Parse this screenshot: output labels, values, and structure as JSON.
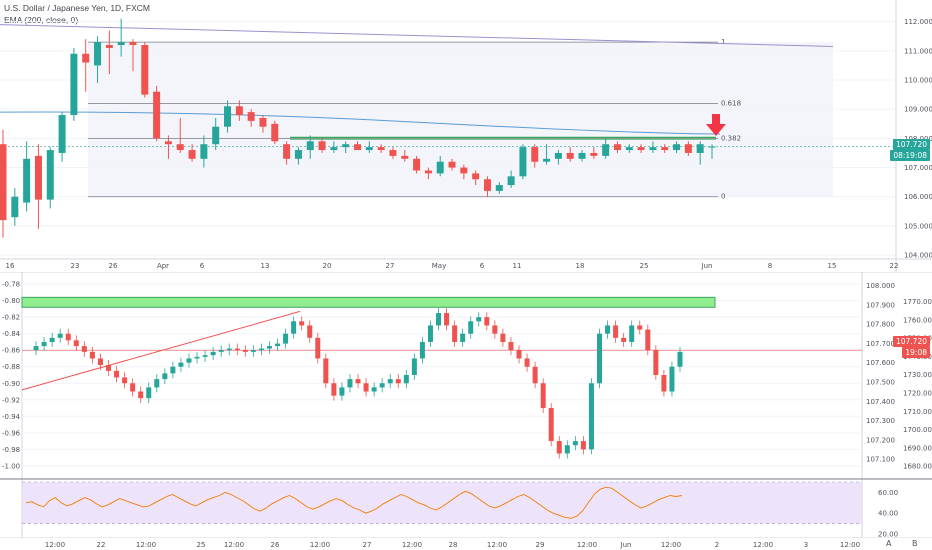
{
  "header": {
    "title": "U.S. Dollar / Japanese Yen, 1D, FXCM",
    "indicator": "EMA (200, close, 0)"
  },
  "colors": {
    "up": "#26a69a",
    "down": "#ef5350",
    "fib": "#787b86",
    "ema": "#5b9bd5",
    "trend": "#9c8fcf",
    "support": "#3ba55c",
    "arrow": "#f23645",
    "zone": "#90ee90",
    "rsi": "#f57c00",
    "rsi_band": "#e6d9fb"
  },
  "top": {
    "price_axis": [
      "112.000",
      "111.000",
      "110.000",
      "109.000",
      "108.000",
      "107.000",
      "106.000",
      "105.000",
      "104.000"
    ],
    "time_axis": [
      "16",
      "23",
      "26",
      "Apr",
      "6",
      "13",
      "20",
      "27",
      "May",
      "6",
      "11",
      "18",
      "25",
      "Jun",
      "8",
      "15",
      "22"
    ],
    "fib_labels": [
      "1",
      "0.618",
      "0.382",
      "0"
    ],
    "last_price": "107.720",
    "countdown": "08:19:08"
  },
  "bottom": {
    "left_axis": [
      "-0.78",
      "-0.80",
      "-0.82",
      "-0.84",
      "-0.86",
      "-0.88",
      "-0.90",
      "-0.92",
      "-0.94",
      "-0.96",
      "-0.98",
      "-1.00"
    ],
    "right_axis_a": [
      "108.000",
      "107.900",
      "107.800",
      "107.700",
      "107.600",
      "107.500",
      "107.400",
      "107.300",
      "107.200",
      "107.100"
    ],
    "right_axis_b": [
      "1770.00",
      "1760.00",
      "1750.00",
      "1740.00",
      "1730.00",
      "1720.00",
      "1710.00",
      "1700.00",
      "1690.00",
      "1680.00"
    ],
    "last_price": "107.720",
    "countdown": "19:08",
    "rsi_axis": [
      "60.00",
      "40.00",
      "20.00"
    ],
    "time_axis": [
      "12:00",
      "22",
      "12:00",
      "25",
      "12:00",
      "26",
      "12:00",
      "27",
      "12:00",
      "28",
      "12:00",
      "29",
      "12:00",
      "Jun",
      "12:00",
      "2",
      "12:00",
      "3",
      "12:00"
    ],
    "corner_a": "A",
    "corner_b": "B"
  },
  "chart_data": [
    {
      "type": "candlestick",
      "title": "U.S. Dollar / Japanese Yen, 1D, FXCM",
      "ylim": [
        103.9,
        112.4
      ],
      "fib_levels": [
        {
          "label": "1",
          "value": 111.3
        },
        {
          "label": "0.618",
          "value": 109.2
        },
        {
          "label": "0.382",
          "value": 108.0
        },
        {
          "label": "0",
          "value": 106.0
        }
      ],
      "candles": [
        {
          "o": 107.8,
          "h": 108.3,
          "l": 104.6,
          "c": 105.2
        },
        {
          "o": 105.3,
          "h": 106.3,
          "l": 105.0,
          "c": 106.0
        },
        {
          "o": 105.8,
          "h": 107.9,
          "l": 105.5,
          "c": 107.3
        },
        {
          "o": 107.4,
          "h": 107.8,
          "l": 104.9,
          "c": 105.9
        },
        {
          "o": 105.9,
          "h": 107.7,
          "l": 105.6,
          "c": 107.6
        },
        {
          "o": 107.5,
          "h": 108.9,
          "l": 107.2,
          "c": 108.8
        },
        {
          "o": 108.8,
          "h": 111.1,
          "l": 108.6,
          "c": 110.9
        },
        {
          "o": 110.9,
          "h": 111.4,
          "l": 109.6,
          "c": 110.6
        },
        {
          "o": 110.5,
          "h": 111.5,
          "l": 109.9,
          "c": 111.3
        },
        {
          "o": 111.2,
          "h": 111.7,
          "l": 110.2,
          "c": 111.1
        },
        {
          "o": 111.2,
          "h": 112.1,
          "l": 110.8,
          "c": 111.3
        },
        {
          "o": 111.3,
          "h": 111.4,
          "l": 110.3,
          "c": 111.2
        },
        {
          "o": 111.2,
          "h": 111.3,
          "l": 109.4,
          "c": 109.5
        },
        {
          "o": 109.6,
          "h": 109.8,
          "l": 107.9,
          "c": 108.0
        },
        {
          "o": 107.9,
          "h": 108.1,
          "l": 107.3,
          "c": 107.8
        },
        {
          "o": 107.8,
          "h": 108.7,
          "l": 107.5,
          "c": 107.6
        },
        {
          "o": 107.6,
          "h": 107.8,
          "l": 107.2,
          "c": 107.3
        },
        {
          "o": 107.3,
          "h": 108.1,
          "l": 107.0,
          "c": 107.8
        },
        {
          "o": 107.8,
          "h": 108.7,
          "l": 107.6,
          "c": 108.4
        },
        {
          "o": 108.4,
          "h": 109.3,
          "l": 108.2,
          "c": 109.1
        },
        {
          "o": 109.1,
          "h": 109.3,
          "l": 108.6,
          "c": 108.8
        },
        {
          "o": 108.9,
          "h": 109.0,
          "l": 108.4,
          "c": 108.6
        },
        {
          "o": 108.7,
          "h": 108.8,
          "l": 108.2,
          "c": 108.4
        },
        {
          "o": 108.5,
          "h": 108.6,
          "l": 107.8,
          "c": 107.9
        },
        {
          "o": 107.8,
          "h": 107.9,
          "l": 107.1,
          "c": 107.3
        },
        {
          "o": 107.3,
          "h": 107.7,
          "l": 107.1,
          "c": 107.6
        },
        {
          "o": 107.6,
          "h": 108.1,
          "l": 107.3,
          "c": 107.9
        },
        {
          "o": 107.9,
          "h": 108.0,
          "l": 107.5,
          "c": 107.6
        },
        {
          "o": 107.6,
          "h": 107.9,
          "l": 107.5,
          "c": 107.7
        },
        {
          "o": 107.7,
          "h": 107.9,
          "l": 107.5,
          "c": 107.8
        },
        {
          "o": 107.8,
          "h": 107.9,
          "l": 107.6,
          "c": 107.6
        },
        {
          "o": 107.6,
          "h": 107.9,
          "l": 107.5,
          "c": 107.7
        },
        {
          "o": 107.7,
          "h": 107.8,
          "l": 107.5,
          "c": 107.6
        },
        {
          "o": 107.6,
          "h": 107.7,
          "l": 107.3,
          "c": 107.4
        },
        {
          "o": 107.4,
          "h": 107.6,
          "l": 107.2,
          "c": 107.3
        },
        {
          "o": 107.3,
          "h": 107.4,
          "l": 106.8,
          "c": 106.9
        },
        {
          "o": 106.9,
          "h": 107.0,
          "l": 106.6,
          "c": 106.8
        },
        {
          "o": 106.8,
          "h": 107.4,
          "l": 106.7,
          "c": 107.2
        },
        {
          "o": 107.2,
          "h": 107.3,
          "l": 106.9,
          "c": 107.0
        },
        {
          "o": 107.0,
          "h": 107.1,
          "l": 106.6,
          "c": 106.8
        },
        {
          "o": 106.8,
          "h": 106.9,
          "l": 106.4,
          "c": 106.6
        },
        {
          "o": 106.6,
          "h": 106.7,
          "l": 106.0,
          "c": 106.2
        },
        {
          "o": 106.2,
          "h": 106.5,
          "l": 106.1,
          "c": 106.4
        },
        {
          "o": 106.4,
          "h": 106.9,
          "l": 106.3,
          "c": 106.7
        },
        {
          "o": 106.7,
          "h": 107.8,
          "l": 106.6,
          "c": 107.7
        },
        {
          "o": 107.7,
          "h": 107.8,
          "l": 107.0,
          "c": 107.2
        },
        {
          "o": 107.2,
          "h": 107.8,
          "l": 107.1,
          "c": 107.3
        },
        {
          "o": 107.3,
          "h": 107.6,
          "l": 107.1,
          "c": 107.5
        },
        {
          "o": 107.5,
          "h": 107.7,
          "l": 107.2,
          "c": 107.3
        },
        {
          "o": 107.3,
          "h": 107.6,
          "l": 107.2,
          "c": 107.5
        },
        {
          "o": 107.5,
          "h": 107.7,
          "l": 107.3,
          "c": 107.4
        },
        {
          "o": 107.4,
          "h": 108.0,
          "l": 107.3,
          "c": 107.8
        },
        {
          "o": 107.8,
          "h": 107.9,
          "l": 107.5,
          "c": 107.6
        },
        {
          "o": 107.6,
          "h": 107.8,
          "l": 107.5,
          "c": 107.7
        },
        {
          "o": 107.7,
          "h": 107.8,
          "l": 107.5,
          "c": 107.6
        },
        {
          "o": 107.6,
          "h": 107.9,
          "l": 107.5,
          "c": 107.7
        },
        {
          "o": 107.7,
          "h": 107.8,
          "l": 107.5,
          "c": 107.6
        },
        {
          "o": 107.6,
          "h": 107.9,
          "l": 107.5,
          "c": 107.8
        },
        {
          "o": 107.8,
          "h": 107.9,
          "l": 107.4,
          "c": 107.5
        },
        {
          "o": 107.5,
          "h": 107.9,
          "l": 107.1,
          "c": 107.8
        },
        {
          "o": 107.7,
          "h": 107.8,
          "l": 107.3,
          "c": 107.72
        }
      ]
    },
    {
      "type": "line",
      "ylabel": "",
      "ylim": [
        -1.005,
        -0.775
      ],
      "zone": [
        -0.808,
        -0.796
      ],
      "trendline": [
        [
          0,
          -0.908
        ],
        [
          47,
          -0.813
        ]
      ],
      "levels": [
        -0.86
      ]
    },
    {
      "type": "line",
      "series": [
        {
          "name": "",
          "values": [
            50,
            51,
            48,
            46,
            52,
            55,
            50,
            47,
            49,
            52,
            55,
            53,
            49,
            46,
            48,
            51,
            54,
            52,
            50,
            48,
            46,
            47,
            50,
            53,
            56,
            58,
            55,
            52,
            49,
            47,
            50,
            53,
            55,
            57,
            60,
            58,
            55,
            52,
            48,
            44,
            42,
            45,
            49,
            52,
            55,
            57,
            54,
            50,
            46,
            44,
            46,
            49,
            52,
            54,
            52,
            48,
            45,
            43,
            40,
            42,
            45,
            49,
            52,
            55,
            58,
            56,
            53,
            50,
            48,
            45,
            43,
            46,
            50,
            54,
            58,
            61,
            59,
            55,
            51,
            47,
            45,
            47,
            50,
            53,
            56,
            58,
            55,
            51,
            47,
            43,
            40,
            38,
            36,
            35,
            37,
            42,
            50,
            58,
            63,
            65,
            64,
            60,
            56,
            52,
            48,
            45,
            47,
            50,
            53,
            55,
            57,
            56,
            57
          ]
        }
      ],
      "ylim": [
        18,
        70
      ],
      "band": [
        30,
        70
      ]
    }
  ]
}
